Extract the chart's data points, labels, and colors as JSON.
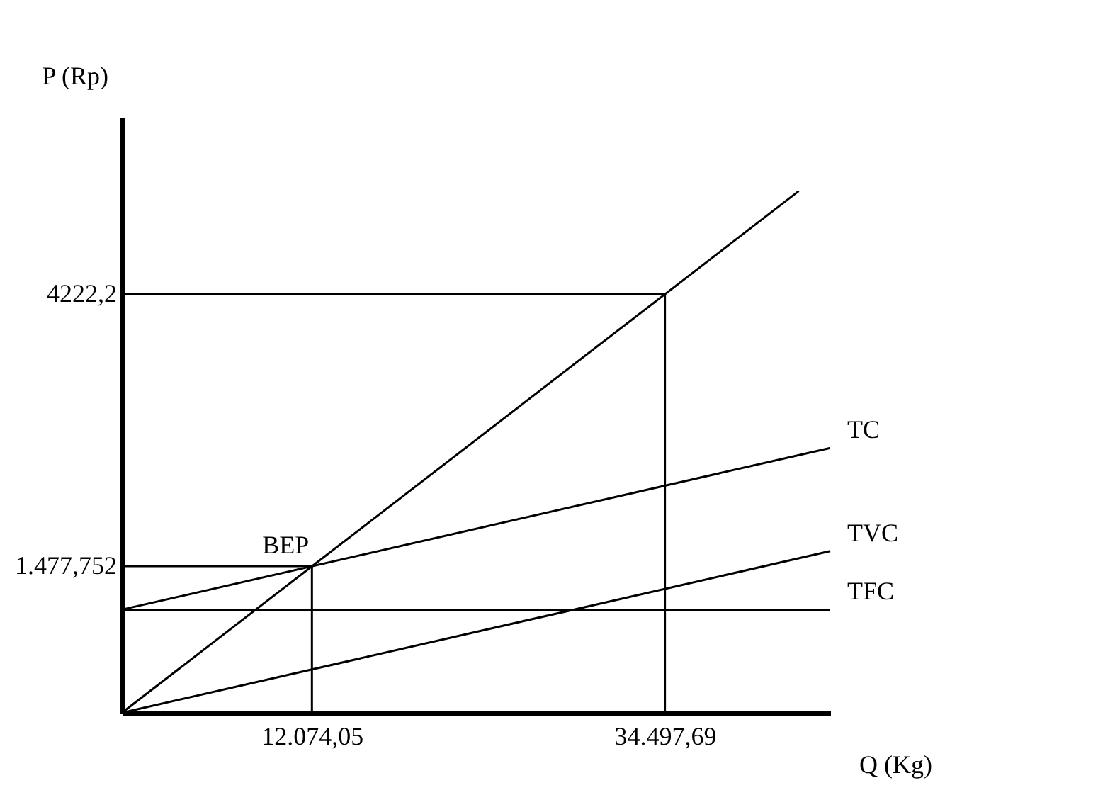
{
  "chart_data": {
    "type": "line",
    "xlabel": "Q (Kg)",
    "ylabel": "P (Rp)",
    "xlim": [
      0,
      45000
    ],
    "ylim": [
      0,
      6000
    ],
    "xticks": [
      {
        "value": 12074.05,
        "label": "12.074,05"
      },
      {
        "value": 34497.69,
        "label": "34.497,69"
      }
    ],
    "yticks": [
      {
        "value": 1477.752,
        "label": "1.477,752"
      },
      {
        "value": 4222.2,
        "label": "4222,2"
      }
    ],
    "series": [
      {
        "color": "#000000",
        "x": [
          0,
          43000
        ],
        "values": [
          0,
          5260
        ]
      },
      {
        "name": "TC",
        "color": "#000000",
        "x": [
          0,
          45000
        ],
        "values": [
          1040,
          2670
        ]
      },
      {
        "name": "TVC",
        "color": "#000000",
        "x": [
          0,
          45000
        ],
        "values": [
          0,
          1630
        ]
      },
      {
        "name": "TFC",
        "color": "#000000",
        "x": [
          0,
          45000
        ],
        "values": [
          1040,
          1040
        ]
      },
      {
        "color": "#000000",
        "x": [
          0,
          12074.05,
          12074.05
        ],
        "values": [
          1477.752,
          1477.752,
          0
        ]
      },
      {
        "color": "#000000",
        "x": [
          0,
          34497.69,
          34497.69
        ],
        "values": [
          4222.2,
          4222.2,
          0
        ]
      }
    ],
    "annotations": [
      {
        "text": "BEP",
        "x": 12074.05,
        "y": 1477.752
      }
    ],
    "grid": false
  }
}
